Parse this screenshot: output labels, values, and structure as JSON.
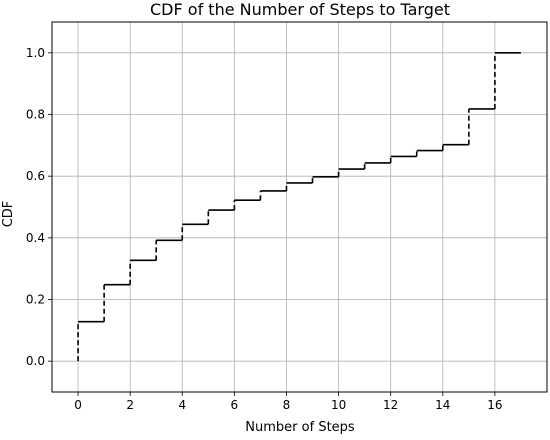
{
  "chart_data": {
    "type": "line",
    "title": "CDF of the Number of Steps to Target",
    "xlabel": "Number of Steps",
    "ylabel": "CDF",
    "xlim": [
      -1,
      18
    ],
    "ylim": [
      -0.1,
      1.1
    ],
    "x_ticks": [
      0,
      2,
      4,
      6,
      8,
      10,
      12,
      14,
      16
    ],
    "x_tick_labels": [
      "0",
      "2",
      "4",
      "6",
      "8",
      "10",
      "12",
      "14",
      "16"
    ],
    "y_ticks": [
      0.0,
      0.2,
      0.4,
      0.6,
      0.8,
      1.0
    ],
    "y_tick_labels": [
      "0.0",
      "0.2",
      "0.4",
      "0.6",
      "0.8",
      "1.0"
    ],
    "grid": true,
    "series": [
      {
        "style": "step",
        "color": "#000000",
        "points": [
          [
            0,
            0.0
          ],
          [
            0,
            0.128
          ],
          [
            1,
            0.248
          ],
          [
            2,
            0.327
          ],
          [
            3,
            0.392
          ],
          [
            4,
            0.444
          ],
          [
            5,
            0.49
          ],
          [
            6,
            0.522
          ],
          [
            7,
            0.552
          ],
          [
            8,
            0.578
          ],
          [
            9,
            0.598
          ],
          [
            10,
            0.623
          ],
          [
            11,
            0.643
          ],
          [
            12,
            0.664
          ],
          [
            13,
            0.683
          ],
          [
            14,
            0.702
          ],
          [
            15,
            0.818
          ],
          [
            16,
            1.0
          ],
          [
            17,
            1.0
          ]
        ]
      }
    ]
  }
}
